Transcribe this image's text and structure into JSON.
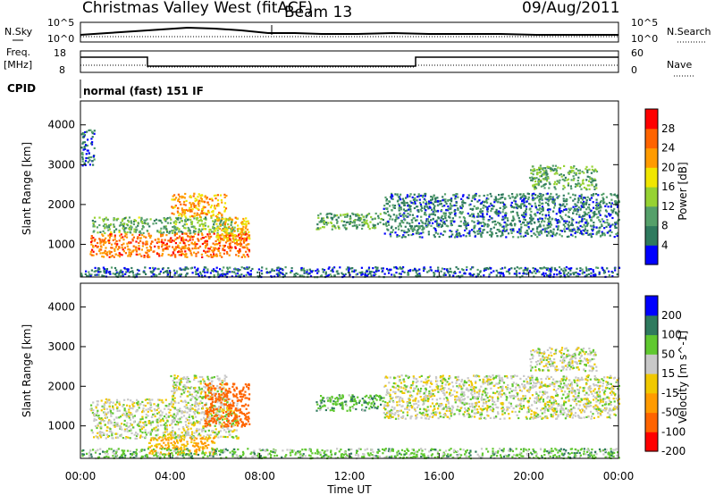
{
  "header": {
    "title": "Christmas Valley West (fitACF)",
    "beam": "Beam 13",
    "date": "09/Aug/2011"
  },
  "top_panels": {
    "nsky_label": "N.Sky",
    "nsearch_label": "N.Search",
    "nsky_ticks": [
      "10^5",
      "10^0"
    ],
    "nsearch_ticks": [
      "10^5",
      "10^0"
    ],
    "freq_label_line1": "Freq.",
    "freq_label_line2": "[MHz]",
    "freq_ticks": [
      "18",
      "8"
    ],
    "nave_label": "Nave",
    "nave_ticks": [
      "60",
      "0"
    ],
    "cpid_label": "CPID",
    "cpid_text": "normal (fast) 151 IF"
  },
  "colors": {
    "power_scale": [
      "#0000ff",
      "#2f7a5e",
      "#55a06a",
      "#96d232",
      "#f0e600",
      "#ff9b00",
      "#ff6400",
      "#ff0000"
    ],
    "velocity_scale": [
      "#ff0000",
      "#ff6400",
      "#ff9b00",
      "#f0c800",
      "#c8c8c8",
      "#60c830",
      "#2f7a5e",
      "#0000ff"
    ]
  },
  "chart_data": [
    {
      "type": "heatmap",
      "name": "power",
      "ylabel": "Slant Range [km]",
      "xlabel": "",
      "x_ticks": [
        "00:00",
        "04:00",
        "08:00",
        "12:00",
        "16:00",
        "20:00",
        "00:00"
      ],
      "y_ticks": [
        1000,
        2000,
        3000,
        4000
      ],
      "xlim_hours": [
        0,
        24
      ],
      "ylim_km": [
        180,
        4600
      ],
      "colorbar_label": "Power [dB]",
      "colorbar_ticks": [
        4,
        8,
        12,
        16,
        20,
        24,
        28
      ],
      "colorbar_range": [
        0,
        32
      ],
      "regions": [
        {
          "t0": 0.4,
          "t1": 7.5,
          "r0": 700,
          "r1": 1300,
          "value": 25
        },
        {
          "t0": 0.5,
          "t1": 7.0,
          "r0": 1300,
          "r1": 1700,
          "value": 12
        },
        {
          "t0": 4.0,
          "t1": 6.5,
          "r0": 1700,
          "r1": 2300,
          "value": 22
        },
        {
          "t0": 6.0,
          "t1": 7.5,
          "r0": 1100,
          "r1": 1700,
          "value": 20
        },
        {
          "t0": 10.5,
          "t1": 13.5,
          "r0": 1400,
          "r1": 1800,
          "value": 10
        },
        {
          "t0": 13.5,
          "t1": 24.0,
          "r0": 1200,
          "r1": 2300,
          "value": 7
        },
        {
          "t0": 20.0,
          "t1": 23.0,
          "r0": 2400,
          "r1": 3000,
          "value": 11
        },
        {
          "t0": 0.0,
          "t1": 24.0,
          "r0": 200,
          "r1": 450,
          "value": 5
        },
        {
          "t0": 0.0,
          "t1": 0.6,
          "r0": 3000,
          "r1": 3900,
          "value": 6
        }
      ]
    },
    {
      "type": "heatmap",
      "name": "velocity",
      "ylabel": "Slant Range [km]",
      "xlabel": "Time UT",
      "x_ticks": [
        "00:00",
        "04:00",
        "08:00",
        "12:00",
        "16:00",
        "20:00",
        "00:00"
      ],
      "y_ticks": [
        1000,
        2000,
        3000,
        4000
      ],
      "xlim_hours": [
        0,
        24
      ],
      "ylim_km": [
        180,
        4600
      ],
      "colorbar_label": "Velocity [m s^-1]",
      "colorbar_ticks": [
        200,
        100,
        50,
        15,
        -15,
        -50,
        -100,
        -200
      ],
      "regions": [
        {
          "t0": 0.4,
          "t1": 7.0,
          "r0": 700,
          "r1": 1700,
          "value": 0
        },
        {
          "t0": 4.0,
          "t1": 6.5,
          "r0": 1700,
          "r1": 2300,
          "value": 0
        },
        {
          "t0": 5.5,
          "t1": 7.5,
          "r0": 1000,
          "r1": 2100,
          "value": -150
        },
        {
          "t0": 3.0,
          "t1": 6.0,
          "r0": 300,
          "r1": 750,
          "value": -60
        },
        {
          "t0": 10.5,
          "t1": 13.5,
          "r0": 1400,
          "r1": 1800,
          "value": 40
        },
        {
          "t0": 13.5,
          "t1": 24.0,
          "r0": 1200,
          "r1": 2300,
          "value": 0
        },
        {
          "t0": 20.0,
          "t1": 23.0,
          "r0": 2400,
          "r1": 3000,
          "value": 0
        },
        {
          "t0": 0.0,
          "t1": 24.0,
          "r0": 200,
          "r1": 450,
          "value": 30
        }
      ]
    }
  ]
}
